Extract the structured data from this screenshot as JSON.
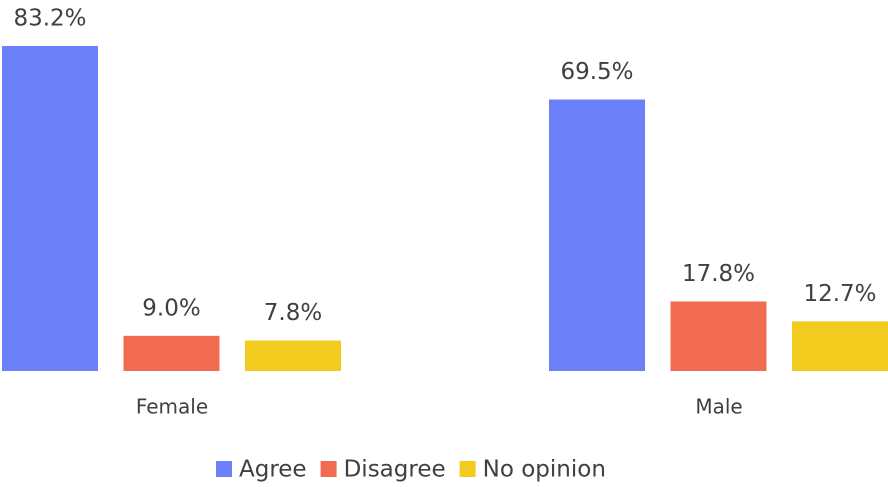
{
  "chart_data": {
    "type": "bar",
    "categories": [
      "Female",
      "Male"
    ],
    "series": [
      {
        "name": "Agree",
        "color": "#6b7ff8",
        "values": [
          83.2,
          69.5
        ],
        "value_labels": [
          "83.2%",
          "69.5%"
        ]
      },
      {
        "name": "Disagree",
        "color": "#f06b50",
        "values": [
          9.0,
          17.8
        ],
        "value_labels": [
          "9.0%",
          "17.8%"
        ]
      },
      {
        "name": "No opinion",
        "color": "#f1cc1e",
        "values": [
          7.8,
          12.7
        ],
        "value_labels": [
          "7.8%",
          "12.7%"
        ]
      }
    ],
    "legend": "bottom"
  }
}
